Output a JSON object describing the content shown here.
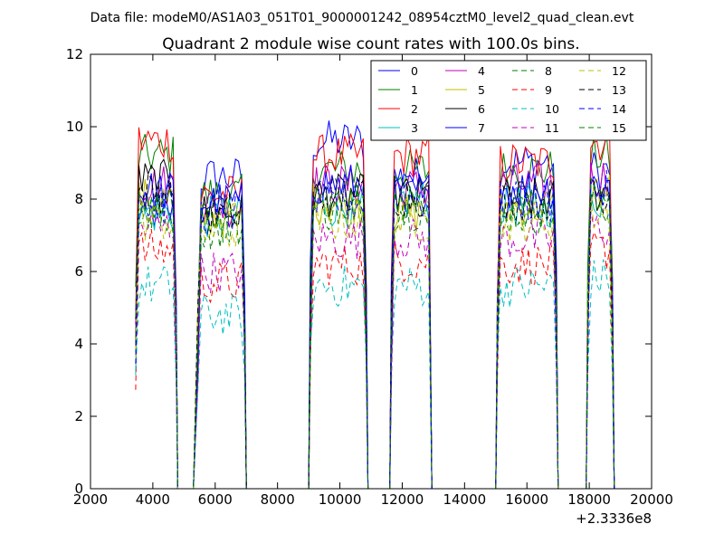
{
  "chart_data": {
    "type": "line",
    "suptitle": "Data file: modeM0/AS1A03_051T01_9000001242_08954cztM0_level2_quad_clean.evt",
    "title": "Quadrant 2 module wise count rates with 100.0s bins.",
    "xlabel": "",
    "ylabel": "",
    "xlim": [
      2000,
      20000
    ],
    "ylim": [
      0,
      12
    ],
    "x_offset_label": "+2.3336e8",
    "xticks": [
      2000,
      4000,
      6000,
      8000,
      10000,
      12000,
      14000,
      16000,
      18000,
      20000
    ],
    "xtick_labels": [
      "2000",
      "4000",
      "6000",
      "8000",
      "10000",
      "12000",
      "14000",
      "16000",
      "18000",
      "20000"
    ],
    "yticks": [
      0,
      2,
      4,
      6,
      8,
      10,
      12
    ],
    "ytick_labels": [
      "0",
      "2",
      "4",
      "6",
      "8",
      "10",
      "12"
    ],
    "legend_position": "top-right",
    "segments": [
      [
        3450,
        4750
      ],
      [
        5450,
        6950
      ],
      [
        9050,
        10850
      ],
      [
        11650,
        12900
      ],
      [
        15050,
        16950
      ],
      [
        17950,
        18750
      ]
    ],
    "gap_points": [
      4800,
      5000,
      5300,
      7000,
      7200,
      8000,
      9000,
      10900,
      11100,
      11600,
      12950,
      13100,
      15000,
      17000,
      17300,
      17900,
      18800
    ],
    "series": [
      {
        "name": "0",
        "color": "#0000ff",
        "dash": "solid",
        "levels": [
          7.6,
          8.6,
          9.6,
          8.6,
          9.0,
          8.8
        ]
      },
      {
        "name": "1",
        "color": "#008000",
        "dash": "solid",
        "levels": [
          9.2,
          8.1,
          8.8,
          8.8,
          8.8,
          9.2
        ]
      },
      {
        "name": "2",
        "color": "#ff0000",
        "dash": "solid",
        "levels": [
          9.6,
          8.1,
          9.2,
          9.2,
          9.0,
          9.6
        ]
      },
      {
        "name": "3",
        "color": "#00bfbf",
        "dash": "solid",
        "levels": [
          7.6,
          7.5,
          7.8,
          8.0,
          7.8,
          8.0
        ]
      },
      {
        "name": "4",
        "color": "#bf00bf",
        "dash": "solid",
        "levels": [
          8.4,
          7.8,
          8.4,
          8.3,
          8.4,
          8.6
        ]
      },
      {
        "name": "5",
        "color": "#bfbf00",
        "dash": "solid",
        "levels": [
          8.0,
          7.5,
          7.9,
          7.6,
          7.8,
          8.2
        ]
      },
      {
        "name": "6",
        "color": "#000000",
        "dash": "solid",
        "levels": [
          8.5,
          7.6,
          8.1,
          8.1,
          8.0,
          8.2
        ]
      },
      {
        "name": "7",
        "color": "#0000ff",
        "dash": "solid",
        "levels": [
          8.2,
          7.9,
          8.4,
          8.2,
          8.3,
          8.4
        ]
      },
      {
        "name": "8",
        "color": "#008000",
        "dash": "dashed",
        "levels": [
          7.6,
          7.2,
          7.7,
          7.7,
          7.6,
          7.8
        ]
      },
      {
        "name": "9",
        "color": "#ff0000",
        "dash": "dashed",
        "levels": [
          6.6,
          5.7,
          6.2,
          6.3,
          6.2,
          6.6
        ]
      },
      {
        "name": "10",
        "color": "#00bfbf",
        "dash": "dashed",
        "levels": [
          5.6,
          4.8,
          5.6,
          5.6,
          5.6,
          5.8
        ]
      },
      {
        "name": "11",
        "color": "#bf00bf",
        "dash": "dashed",
        "levels": [
          7.2,
          6.0,
          6.9,
          6.9,
          6.9,
          7.2
        ]
      },
      {
        "name": "12",
        "color": "#bfbf00",
        "dash": "dashed",
        "levels": [
          7.4,
          7.1,
          7.4,
          7.4,
          7.4,
          7.6
        ]
      },
      {
        "name": "13",
        "color": "#000000",
        "dash": "dashed",
        "levels": [
          8.2,
          7.6,
          8.1,
          8.1,
          8.0,
          8.2
        ]
      },
      {
        "name": "14",
        "color": "#0000ff",
        "dash": "dashed",
        "levels": [
          7.9,
          7.6,
          7.9,
          8.0,
          7.9,
          8.2
        ]
      },
      {
        "name": "15",
        "color": "#008000",
        "dash": "dashed",
        "levels": [
          7.8,
          7.4,
          7.8,
          7.8,
          7.7,
          8.0
        ]
      }
    ]
  }
}
